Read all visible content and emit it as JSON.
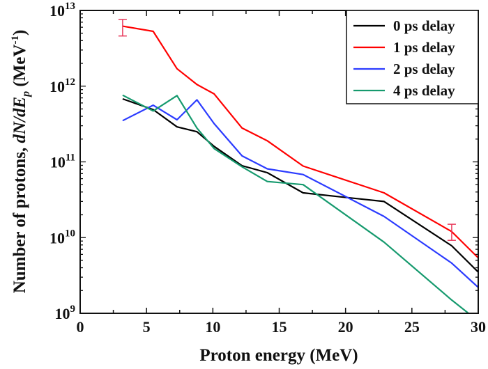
{
  "chart_data": {
    "type": "line",
    "xlabel": "Proton energy (MeV)",
    "ylabel": {
      "main": "Number of protons, ",
      "italic": "dN/dE",
      "sub": "p",
      "unit_pre": " (MeV",
      "unit_sup": "-1",
      "unit_post": ")"
    },
    "xlim": [
      0,
      30
    ],
    "ylim": [
      1000000000.0,
      10000000000000.0
    ],
    "yscale": "log",
    "grid": false,
    "legend_placement": "top-right",
    "x_ticks": [
      "0",
      "5",
      "10",
      "15",
      "20",
      "25",
      "30"
    ],
    "y_ticks": [
      {
        "base": "10",
        "exp": "9"
      },
      {
        "base": "10",
        "exp": "10"
      },
      {
        "base": "10",
        "exp": "11"
      },
      {
        "base": "10",
        "exp": "12"
      },
      {
        "base": "10",
        "exp": "13"
      }
    ],
    "series": [
      {
        "name": "0 ps delay",
        "color": "#000000",
        "x": [
          3.2,
          5.5,
          7.3,
          8.8,
          10.1,
          12.2,
          14.1,
          16.8,
          22.9,
          28.0,
          30.0
        ],
        "y": [
          680000000000.0,
          490000000000.0,
          290000000000.0,
          250000000000.0,
          160000000000.0,
          89000000000.0,
          72000000000.0,
          39000000000.0,
          30000000000.0,
          7800000000.0,
          3500000000.0
        ]
      },
      {
        "name": "1 ps delay",
        "color": "#ff0000",
        "x": [
          3.2,
          5.5,
          7.3,
          8.8,
          10.1,
          12.2,
          14.1,
          16.8,
          22.9,
          28.0,
          30.0
        ],
        "y": [
          6200000000000.0,
          5300000000000.0,
          1700000000000.0,
          1050000000000.0,
          790000000000.0,
          280000000000.0,
          190000000000.0,
          88000000000.0,
          39000000000.0,
          12000000000.0,
          5400000000.0
        ]
      },
      {
        "name": "2 ps delay",
        "color": "#2b3bff",
        "x": [
          3.2,
          5.5,
          7.3,
          8.8,
          10.1,
          12.2,
          14.1,
          16.8,
          22.9,
          28.0,
          30.0
        ],
        "y": [
          350000000000.0,
          560000000000.0,
          360000000000.0,
          660000000000.0,
          320000000000.0,
          120000000000.0,
          81000000000.0,
          68000000000.0,
          19000000000.0,
          4600000000.0,
          2200000000.0
        ]
      },
      {
        "name": "4 ps delay",
        "color": "#169a6e",
        "x": [
          3.2,
          5.5,
          7.3,
          8.8,
          10.1,
          12.2,
          14.1,
          16.8,
          22.9,
          28.0,
          30.0
        ],
        "y": [
          760000000000.0,
          470000000000.0,
          750000000000.0,
          280000000000.0,
          150000000000.0,
          86000000000.0,
          55000000000.0,
          50000000000.0,
          8700000000.0,
          1500000000.0,
          790000000.0
        ]
      }
    ],
    "error_bars": [
      {
        "series": "1 ps delay",
        "x": 3.2,
        "low": 4600000000000.0,
        "high": 7600000000000.0,
        "color": "#e8385a"
      },
      {
        "series": "1 ps delay",
        "x": 28.0,
        "low": 9200000000.0,
        "high": 15000000000.0,
        "color": "#e8385a"
      }
    ]
  }
}
